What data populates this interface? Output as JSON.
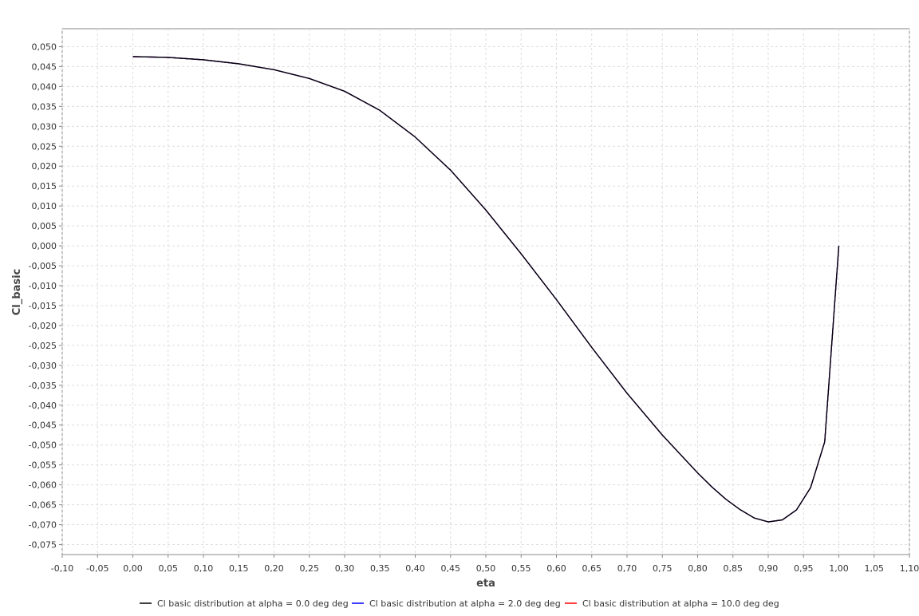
{
  "chart_data": {
    "type": "line",
    "xlabel": "eta",
    "ylabel": "Cl_basic",
    "xlim": [
      -0.1,
      1.1
    ],
    "ylim": [
      -0.0775,
      0.0545
    ],
    "x_ticks": [
      -0.1,
      -0.05,
      0.0,
      0.05,
      0.1,
      0.15,
      0.2,
      0.25,
      0.3,
      0.35,
      0.4,
      0.45,
      0.5,
      0.55,
      0.6,
      0.65,
      0.7,
      0.75,
      0.8,
      0.85,
      0.9,
      0.95,
      1.0,
      1.05,
      1.1
    ],
    "x_tick_labels": [
      "-0,10",
      "-0,05",
      "0,00",
      "0,05",
      "0,10",
      "0,15",
      "0,20",
      "0,25",
      "0,30",
      "0,35",
      "0,40",
      "0,45",
      "0,50",
      "0,55",
      "0,60",
      "0,65",
      "0,70",
      "0,75",
      "0,80",
      "0,85",
      "0,90",
      "0,95",
      "1,00",
      "1,05",
      "1,10"
    ],
    "y_ticks": [
      0.05,
      0.045,
      0.04,
      0.035,
      0.03,
      0.025,
      0.02,
      0.015,
      0.01,
      0.005,
      0.0,
      -0.005,
      -0.01,
      -0.015,
      -0.02,
      -0.025,
      -0.03,
      -0.035,
      -0.04,
      -0.045,
      -0.05,
      -0.055,
      -0.06,
      -0.065,
      -0.07,
      -0.075
    ],
    "y_tick_labels": [
      "0,050",
      "0,045",
      "0,040",
      "0,035",
      "0,030",
      "0,025",
      "0,020",
      "0,015",
      "0,010",
      "0,005",
      "0,000",
      "-0,005",
      "-0,010",
      "-0,015",
      "-0,020",
      "-0,025",
      "-0,030",
      "-0,035",
      "-0,040",
      "-0,045",
      "-0,050",
      "-0,055",
      "-0,060",
      "-0,065",
      "-0,070",
      "-0,075"
    ],
    "grid": true,
    "legend_position": "bottom",
    "x": [
      0.0,
      0.05,
      0.1,
      0.15,
      0.2,
      0.25,
      0.3,
      0.35,
      0.4,
      0.45,
      0.5,
      0.55,
      0.6,
      0.65,
      0.7,
      0.75,
      0.8,
      0.82,
      0.84,
      0.86,
      0.88,
      0.9,
      0.92,
      0.94,
      0.96,
      0.98,
      1.0
    ],
    "series": [
      {
        "name": "Cl basic distribution at alpha = 0.0 deg deg",
        "color": "#000000",
        "values": [
          0.0475,
          0.0473,
          0.0467,
          0.0457,
          0.0442,
          0.042,
          0.0388,
          0.034,
          0.0273,
          0.019,
          0.009,
          -0.002,
          -0.0135,
          -0.0255,
          -0.037,
          -0.0475,
          -0.057,
          -0.0605,
          -0.0636,
          -0.0662,
          -0.0683,
          -0.0693,
          -0.0688,
          -0.0663,
          -0.0607,
          -0.0492,
          0.0
        ]
      },
      {
        "name": "Cl basic distribution at alpha = 2.0 deg deg",
        "color": "#0000ff",
        "values": [
          0.0475,
          0.0473,
          0.0467,
          0.0457,
          0.0442,
          0.042,
          0.0388,
          0.034,
          0.0273,
          0.019,
          0.009,
          -0.002,
          -0.0135,
          -0.0255,
          -0.037,
          -0.0475,
          -0.057,
          -0.0605,
          -0.0636,
          -0.0662,
          -0.0683,
          -0.0693,
          -0.0688,
          -0.0663,
          -0.0607,
          -0.0492,
          0.0
        ]
      },
      {
        "name": "Cl basic distribution at alpha = 10.0 deg deg",
        "color": "#ff0000",
        "values": [
          0.0475,
          0.0473,
          0.0467,
          0.0457,
          0.0442,
          0.042,
          0.0388,
          0.034,
          0.0273,
          0.019,
          0.009,
          -0.002,
          -0.0135,
          -0.0255,
          -0.037,
          -0.0475,
          -0.057,
          -0.0605,
          -0.0636,
          -0.0662,
          -0.0683,
          -0.0693,
          -0.0688,
          -0.0663,
          -0.0607,
          -0.0492,
          0.0
        ]
      }
    ]
  }
}
